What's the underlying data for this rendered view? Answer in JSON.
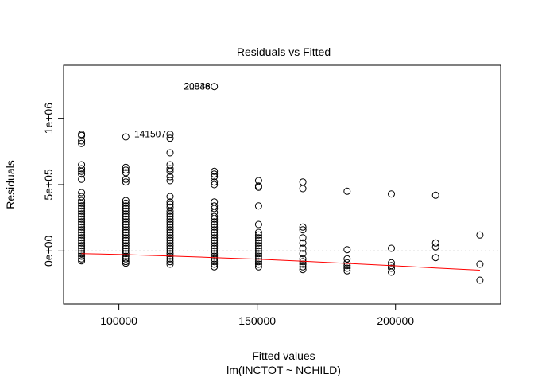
{
  "chart_data": {
    "type": "scatter",
    "title": "Residuals vs Fitted",
    "xlabel": "Fitted values",
    "xlabel_sub": "lm(INCTOT ~ NCHILD)",
    "ylabel": "Residuals",
    "xlim": [
      80000,
      238000
    ],
    "ylim": [
      -400000,
      1400000
    ],
    "x_ticks": [
      {
        "value": 100000,
        "label": "100000"
      },
      {
        "value": 150000,
        "label": "150000"
      },
      {
        "value": 200000,
        "label": "200000"
      }
    ],
    "y_ticks": [
      {
        "value": 0,
        "label": "0e+00"
      },
      {
        "value": 500000,
        "label": "5e+05"
      },
      {
        "value": 1000000,
        "label": "1e+06"
      }
    ],
    "reference_line": {
      "y": 0,
      "style": "dotted",
      "color": "#bbbbbb"
    },
    "smoother": {
      "color": "#ff0000",
      "points": [
        [
          86500,
          -20000
        ],
        [
          102500,
          -28000
        ],
        [
          118500,
          -38000
        ],
        [
          134500,
          -50000
        ],
        [
          150500,
          -63000
        ],
        [
          166500,
          -78000
        ],
        [
          182500,
          -94000
        ],
        [
          198500,
          -110000
        ],
        [
          214500,
          -128000
        ],
        [
          230500,
          -145000
        ]
      ]
    },
    "point_style": {
      "color": "#000000",
      "shape": "open-circle"
    },
    "points": [
      [
        86500,
        880000
      ],
      [
        86500,
        870000
      ],
      [
        86500,
        830000
      ],
      [
        86500,
        810000
      ],
      [
        86500,
        650000
      ],
      [
        86500,
        620000
      ],
      [
        86500,
        600000
      ],
      [
        86500,
        580000
      ],
      [
        86500,
        540000
      ],
      [
        86500,
        440000
      ],
      [
        86500,
        410000
      ],
      [
        86500,
        380000
      ],
      [
        86500,
        360000
      ],
      [
        86500,
        340000
      ],
      [
        86500,
        320000
      ],
      [
        86500,
        300000
      ],
      [
        86500,
        280000
      ],
      [
        86500,
        260000
      ],
      [
        86500,
        240000
      ],
      [
        86500,
        220000
      ],
      [
        86500,
        200000
      ],
      [
        86500,
        180000
      ],
      [
        86500,
        160000
      ],
      [
        86500,
        140000
      ],
      [
        86500,
        120000
      ],
      [
        86500,
        100000
      ],
      [
        86500,
        80000
      ],
      [
        86500,
        60000
      ],
      [
        86500,
        40000
      ],
      [
        86500,
        20000
      ],
      [
        86500,
        0
      ],
      [
        86500,
        -20000
      ],
      [
        86500,
        -40000
      ],
      [
        86500,
        -60000
      ],
      [
        86500,
        -75000
      ],
      [
        102500,
        860000
      ],
      [
        102500,
        630000
      ],
      [
        102500,
        610000
      ],
      [
        102500,
        590000
      ],
      [
        102500,
        540000
      ],
      [
        102500,
        520000
      ],
      [
        102500,
        380000
      ],
      [
        102500,
        360000
      ],
      [
        102500,
        340000
      ],
      [
        102500,
        320000
      ],
      [
        102500,
        300000
      ],
      [
        102500,
        280000
      ],
      [
        102500,
        260000
      ],
      [
        102500,
        240000
      ],
      [
        102500,
        220000
      ],
      [
        102500,
        200000
      ],
      [
        102500,
        180000
      ],
      [
        102500,
        160000
      ],
      [
        102500,
        140000
      ],
      [
        102500,
        120000
      ],
      [
        102500,
        100000
      ],
      [
        102500,
        80000
      ],
      [
        102500,
        60000
      ],
      [
        102500,
        40000
      ],
      [
        102500,
        20000
      ],
      [
        102500,
        0
      ],
      [
        102500,
        -20000
      ],
      [
        102500,
        -40000
      ],
      [
        102500,
        -60000
      ],
      [
        102500,
        -80000
      ],
      [
        102500,
        -92000
      ],
      [
        118500,
        880000
      ],
      [
        118500,
        850000
      ],
      [
        118500,
        740000
      ],
      [
        118500,
        650000
      ],
      [
        118500,
        620000
      ],
      [
        118500,
        600000
      ],
      [
        118500,
        560000
      ],
      [
        118500,
        530000
      ],
      [
        118500,
        410000
      ],
      [
        118500,
        370000
      ],
      [
        118500,
        350000
      ],
      [
        118500,
        330000
      ],
      [
        118500,
        300000
      ],
      [
        118500,
        280000
      ],
      [
        118500,
        260000
      ],
      [
        118500,
        240000
      ],
      [
        118500,
        220000
      ],
      [
        118500,
        200000
      ],
      [
        118500,
        180000
      ],
      [
        118500,
        160000
      ],
      [
        118500,
        140000
      ],
      [
        118500,
        120000
      ],
      [
        118500,
        100000
      ],
      [
        118500,
        80000
      ],
      [
        118500,
        60000
      ],
      [
        118500,
        40000
      ],
      [
        118500,
        20000
      ],
      [
        118500,
        0
      ],
      [
        118500,
        -20000
      ],
      [
        118500,
        -40000
      ],
      [
        118500,
        -60000
      ],
      [
        118500,
        -80000
      ],
      [
        118500,
        -100000
      ],
      [
        134500,
        1240000
      ],
      [
        134500,
        600000
      ],
      [
        134500,
        580000
      ],
      [
        134500,
        560000
      ],
      [
        134500,
        520000
      ],
      [
        134500,
        500000
      ],
      [
        134500,
        370000
      ],
      [
        134500,
        340000
      ],
      [
        134500,
        320000
      ],
      [
        134500,
        290000
      ],
      [
        134500,
        260000
      ],
      [
        134500,
        240000
      ],
      [
        134500,
        220000
      ],
      [
        134500,
        200000
      ],
      [
        134500,
        180000
      ],
      [
        134500,
        160000
      ],
      [
        134500,
        140000
      ],
      [
        134500,
        120000
      ],
      [
        134500,
        100000
      ],
      [
        134500,
        80000
      ],
      [
        134500,
        60000
      ],
      [
        134500,
        40000
      ],
      [
        134500,
        20000
      ],
      [
        134500,
        0
      ],
      [
        134500,
        -20000
      ],
      [
        134500,
        -40000
      ],
      [
        134500,
        -60000
      ],
      [
        134500,
        -80000
      ],
      [
        134500,
        -100000
      ],
      [
        134500,
        -120000
      ],
      [
        150500,
        530000
      ],
      [
        150500,
        490000
      ],
      [
        150500,
        480000
      ],
      [
        150500,
        340000
      ],
      [
        150500,
        200000
      ],
      [
        150500,
        140000
      ],
      [
        150500,
        120000
      ],
      [
        150500,
        100000
      ],
      [
        150500,
        80000
      ],
      [
        150500,
        60000
      ],
      [
        150500,
        40000
      ],
      [
        150500,
        20000
      ],
      [
        150500,
        0
      ],
      [
        150500,
        -20000
      ],
      [
        150500,
        -40000
      ],
      [
        150500,
        -60000
      ],
      [
        150500,
        -80000
      ],
      [
        150500,
        -100000
      ],
      [
        150500,
        -120000
      ],
      [
        166500,
        520000
      ],
      [
        166500,
        470000
      ],
      [
        166500,
        180000
      ],
      [
        166500,
        160000
      ],
      [
        166500,
        100000
      ],
      [
        166500,
        60000
      ],
      [
        166500,
        20000
      ],
      [
        166500,
        -20000
      ],
      [
        166500,
        -60000
      ],
      [
        166500,
        -80000
      ],
      [
        166500,
        -100000
      ],
      [
        166500,
        -120000
      ],
      [
        166500,
        -140000
      ],
      [
        182500,
        450000
      ],
      [
        182500,
        10000
      ],
      [
        182500,
        -60000
      ],
      [
        182500,
        -90000
      ],
      [
        182500,
        -110000
      ],
      [
        182500,
        -130000
      ],
      [
        182500,
        -150000
      ],
      [
        198500,
        430000
      ],
      [
        198500,
        20000
      ],
      [
        198500,
        -90000
      ],
      [
        198500,
        -110000
      ],
      [
        198500,
        -130000
      ],
      [
        198500,
        -160000
      ],
      [
        214500,
        420000
      ],
      [
        214500,
        60000
      ],
      [
        214500,
        30000
      ],
      [
        214500,
        -50000
      ],
      [
        230500,
        120000
      ],
      [
        230500,
        -100000
      ],
      [
        230500,
        -220000
      ]
    ],
    "annotations": [
      {
        "text": "20848",
        "x": 134500,
        "y": 1240000
      },
      {
        "text": "21036",
        "x": 134500,
        "y": 1240000
      },
      {
        "text": "141507",
        "x": 118500,
        "y": 880000
      }
    ]
  }
}
